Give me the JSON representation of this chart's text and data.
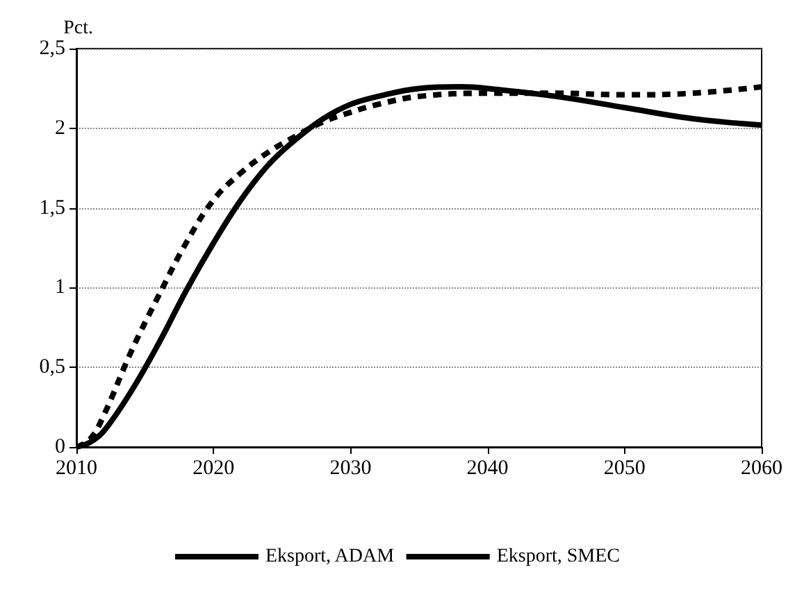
{
  "chart_data": {
    "type": "line",
    "ylabel": "Pct.",
    "xlim": [
      2010,
      2060
    ],
    "xticks": [
      2010,
      2020,
      2030,
      2040,
      2050,
      2060
    ],
    "ylim": [
      0,
      2.5
    ],
    "yticks": [
      0,
      {
        "value": 0.5,
        "label": "0,5"
      },
      1,
      {
        "value": 1.5,
        "label": "1,5"
      },
      2,
      {
        "value": 2.5,
        "label": "2,5"
      }
    ],
    "grid": "y",
    "legend": "bottom",
    "marker": "none",
    "series": [
      {
        "name": "Eksport, ADAM",
        "color": "#000000",
        "line_style": "solid",
        "x": [
          2010,
          2011,
          2012,
          2014,
          2016,
          2018,
          2020,
          2022,
          2024,
          2026,
          2028,
          2030,
          2032,
          2035,
          2038,
          2040,
          2045,
          2050,
          2055,
          2060
        ],
        "values": [
          0,
          0.03,
          0.1,
          0.35,
          0.65,
          0.98,
          1.28,
          1.55,
          1.77,
          1.93,
          2.06,
          2.15,
          2.2,
          2.25,
          2.26,
          2.25,
          2.2,
          2.13,
          2.06,
          2.02
        ]
      },
      {
        "name": "Eksport, SMEC",
        "color": "#000000",
        "line_style": "dashed",
        "x": [
          2010,
          2011,
          2012,
          2014,
          2016,
          2018,
          2020,
          2022,
          2024,
          2026,
          2028,
          2030,
          2032,
          2035,
          2040,
          2045,
          2050,
          2055,
          2060
        ],
        "values": [
          0,
          0.05,
          0.2,
          0.6,
          0.95,
          1.28,
          1.55,
          1.72,
          1.85,
          1.95,
          2.04,
          2.1,
          2.15,
          2.2,
          2.22,
          2.22,
          2.21,
          2.22,
          2.26
        ]
      }
    ]
  }
}
